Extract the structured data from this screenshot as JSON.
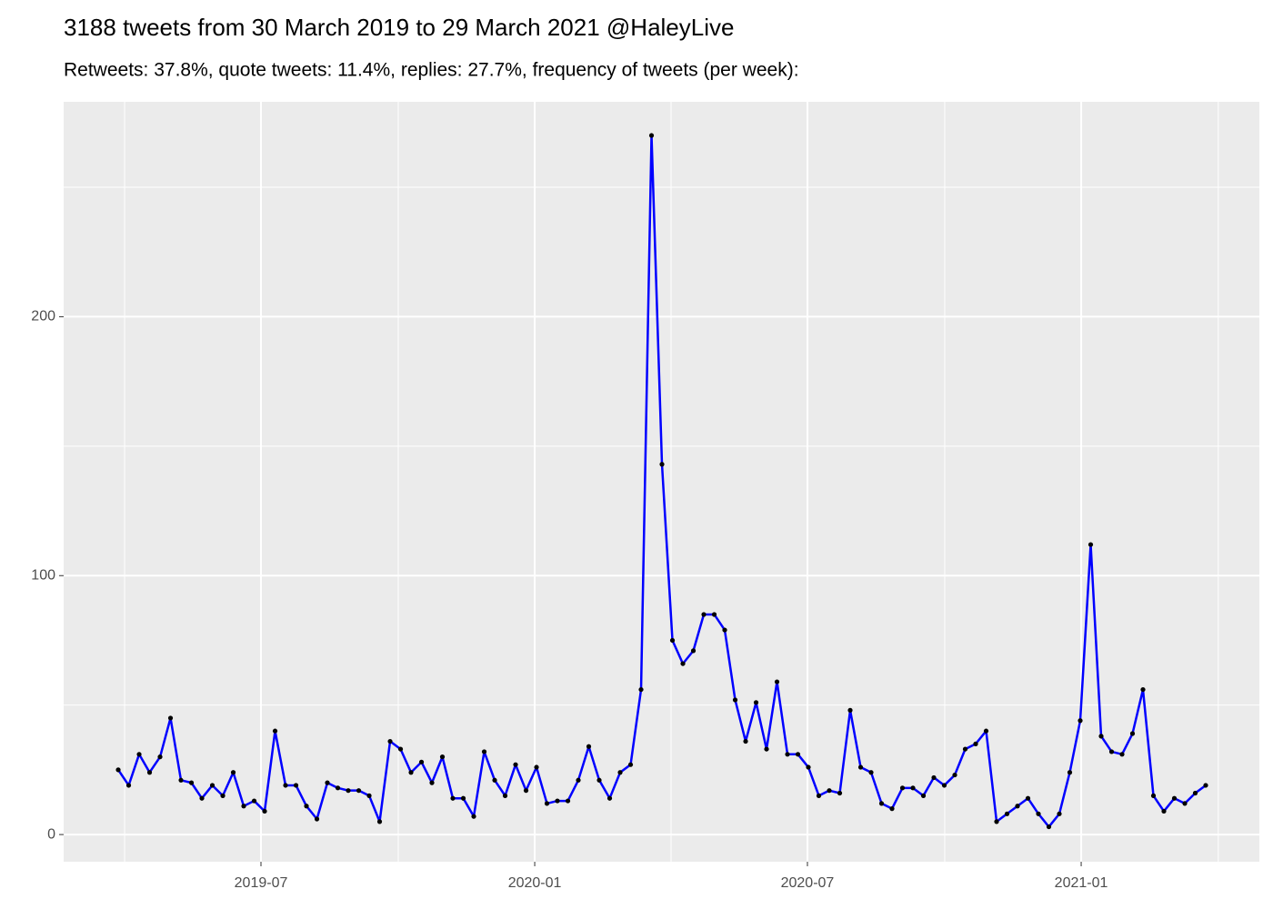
{
  "chart_data": {
    "type": "line",
    "title": "3188 tweets from 30 March 2019 to 29 March 2021 @HaleyLive",
    "subtitle": "Retweets: 37.8%, quote tweets: 11.4%, replies: 27.7%, frequency of tweets (per week):",
    "x": [
      0,
      1,
      2,
      3,
      4,
      5,
      6,
      7,
      8,
      9,
      10,
      11,
      12,
      13,
      14,
      15,
      16,
      17,
      18,
      19,
      20,
      21,
      22,
      23,
      24,
      25,
      26,
      27,
      28,
      29,
      30,
      31,
      32,
      33,
      34,
      35,
      36,
      37,
      38,
      39,
      40,
      41,
      42,
      43,
      44,
      45,
      46,
      47,
      48,
      49,
      50,
      51,
      52,
      53,
      54,
      55,
      56,
      57,
      58,
      59,
      60,
      61,
      62,
      63,
      64,
      65,
      66,
      67,
      68,
      69,
      70,
      71,
      72,
      73,
      74,
      75,
      76,
      77,
      78,
      79,
      80,
      81,
      82,
      83,
      84,
      85,
      86,
      87,
      88,
      89,
      90,
      91,
      92,
      93,
      94,
      95,
      96,
      97,
      98,
      99,
      100,
      101,
      102,
      103,
      104
    ],
    "series": [
      {
        "color": "#0000ff",
        "point_color": "#000000",
        "values": [
          25,
          19,
          31,
          24,
          30,
          45,
          21,
          20,
          14,
          19,
          15,
          24,
          11,
          13,
          9,
          40,
          19,
          19,
          11,
          6,
          20,
          18,
          17,
          17,
          15,
          5,
          36,
          33,
          24,
          28,
          20,
          30,
          14,
          14,
          7,
          32,
          21,
          15,
          27,
          17,
          26,
          12,
          13,
          13,
          21,
          34,
          21,
          14,
          24,
          27,
          56,
          270,
          143,
          75,
          66,
          71,
          85,
          85,
          79,
          52,
          36,
          51,
          33,
          59,
          31,
          31,
          26,
          15,
          17,
          16,
          48,
          26,
          24,
          12,
          10,
          18,
          18,
          15,
          22,
          19,
          23,
          33,
          35,
          40,
          5,
          8,
          11,
          14,
          8,
          3,
          8,
          24,
          44,
          112,
          38,
          32,
          31,
          39,
          56,
          15,
          9,
          14,
          12,
          16,
          19
        ]
      }
    ],
    "xlim": [
      -5.22,
      109.13
    ],
    "xticks": [
      {
        "value": 13.65,
        "label": "2019-07"
      },
      {
        "value": 39.83,
        "label": "2020-01"
      },
      {
        "value": 65.91,
        "label": "2020-07"
      },
      {
        "value": 92.09,
        "label": "2021-01"
      }
    ],
    "xticks_minor": [
      0.61,
      26.78,
      52.87,
      79.04,
      105.2
    ],
    "ylim": [
      -10.5,
      283
    ],
    "yticks": [
      0,
      100,
      200
    ],
    "yticks_minor": [
      50,
      150,
      250
    ],
    "grid": true
  }
}
